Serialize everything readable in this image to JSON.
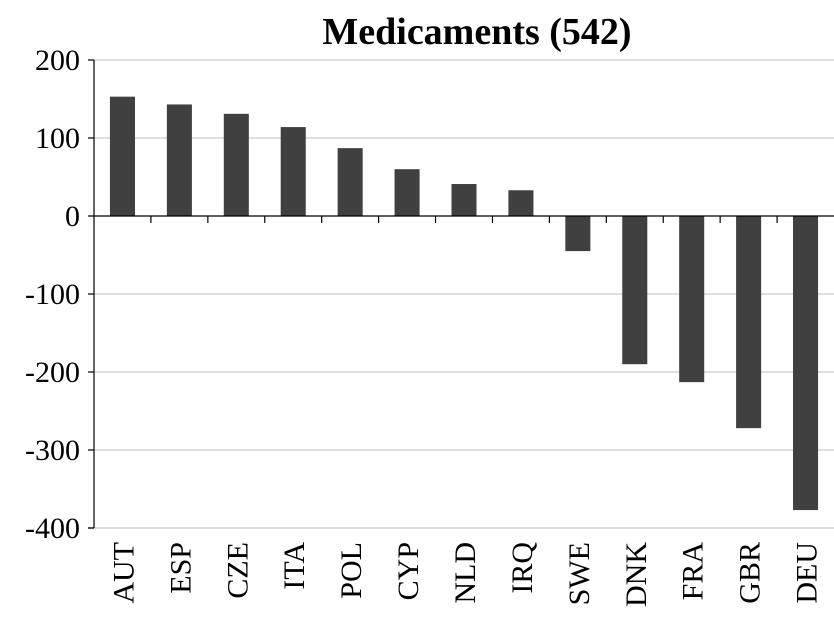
{
  "chart_data": {
    "type": "bar",
    "title": "Medicaments (542)",
    "xlabel": "",
    "ylabel": "",
    "categories": [
      "AUT",
      "ESP",
      "CZE",
      "ITA",
      "POL",
      "CYP",
      "NLD",
      "IRQ",
      "SWE",
      "DNK",
      "FRA",
      "GBR",
      "DEU"
    ],
    "values": [
      153,
      143,
      131,
      114,
      87,
      60,
      41,
      33,
      -45,
      -190,
      -213,
      -272,
      -377
    ],
    "ylim": [
      -400,
      200
    ],
    "yticks": [
      "200",
      "100",
      "0",
      "-100",
      "-200",
      "-300",
      "-400"
    ],
    "grid": true,
    "bar_color": "#404040"
  }
}
